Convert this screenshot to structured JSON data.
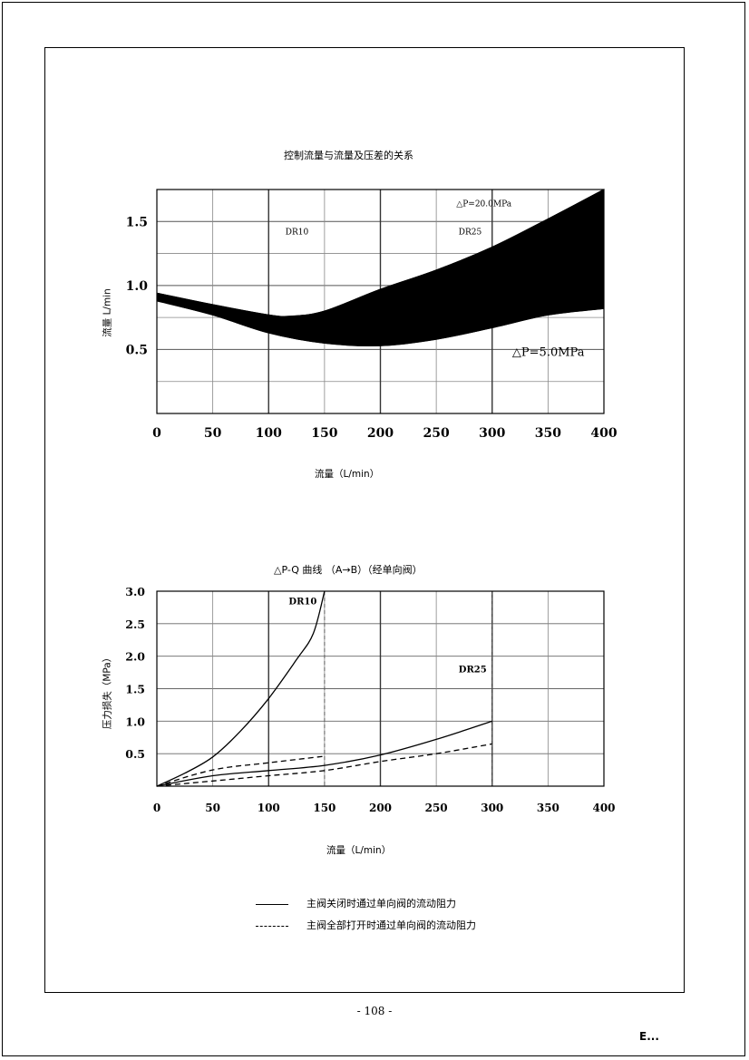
{
  "page": {
    "page_number": "- 108 -",
    "corner_mark": "E..."
  },
  "chart1": {
    "title": "控制流量与流量及压差的关系",
    "xlabel": "流量（L/min）",
    "ylabel": "流量 L/min"
  },
  "chart2": {
    "title": "△P-Q 曲线 （A→B）（经单向阀）",
    "xlabel": "流量（L/min）",
    "ylabel": "压力损失（MPa）",
    "legend": [
      {
        "label": "主阀关闭时通过单向阀的流动阻力",
        "style": "solid"
      },
      {
        "label": "主阀全部打开时通过单向阀的流动阻力",
        "style": "dashed"
      }
    ]
  },
  "chart_data": [
    {
      "type": "area",
      "title": "控制流量与流量及压差的关系",
      "xlabel": "流量（L/min）",
      "ylabel": "流量 L/min",
      "xlim": [
        0,
        400
      ],
      "ylim": [
        0,
        1.75
      ],
      "x_ticks": [
        {
          "value": 0,
          "label": "0"
        },
        {
          "value": 50,
          "label": "50"
        },
        {
          "value": 100,
          "label": "100"
        },
        {
          "value": 150,
          "label": "150"
        },
        {
          "value": 200,
          "label": "200"
        },
        {
          "value": 250,
          "label": "250"
        },
        {
          "value": 300,
          "label": "300"
        },
        {
          "value": 350,
          "label": "350"
        },
        {
          "value": 400,
          "label": "400"
        }
      ],
      "y_ticks": [
        {
          "value": 0.5,
          "label": "0.5"
        },
        {
          "value": 1.0,
          "label": "1.0"
        },
        {
          "value": 1.5,
          "label": "1.5"
        }
      ],
      "grid": true,
      "annotations": [
        {
          "text": "DR10",
          "x": 115,
          "y": 1.4
        },
        {
          "text": "DR25",
          "x": 270,
          "y": 1.4
        },
        {
          "text": "△P=20.0MPa",
          "x": 268,
          "y": 1.62
        },
        {
          "text": "△P=5.0MPa",
          "x": 318,
          "y": 0.45
        }
      ],
      "series": [
        {
          "name": "△P=20.0MPa",
          "x": [
            0,
            50,
            100,
            120,
            150,
            200,
            250,
            300,
            350,
            400
          ],
          "values": [
            0.94,
            0.85,
            0.77,
            0.76,
            0.8,
            0.97,
            1.12,
            1.3,
            1.52,
            1.75
          ]
        },
        {
          "name": "△P=5.0MPa",
          "x": [
            0,
            50,
            100,
            150,
            200,
            250,
            300,
            350,
            400
          ],
          "values": [
            0.88,
            0.77,
            0.63,
            0.55,
            0.53,
            0.58,
            0.67,
            0.77,
            0.82
          ]
        }
      ]
    },
    {
      "type": "line",
      "title": "△P-Q 曲线 （A→B）（经单向阀）",
      "xlabel": "流量（L/min）",
      "ylabel": "压力损失（MPa）",
      "xlim": [
        0,
        400
      ],
      "ylim": [
        0,
        3.0
      ],
      "x_ticks": [
        {
          "value": 0,
          "label": "0"
        },
        {
          "value": 50,
          "label": "50"
        },
        {
          "value": 100,
          "label": "100"
        },
        {
          "value": 150,
          "label": "150"
        },
        {
          "value": 200,
          "label": "200"
        },
        {
          "value": 250,
          "label": "250"
        },
        {
          "value": 300,
          "label": "300"
        },
        {
          "value": 350,
          "label": "350"
        },
        {
          "value": 400,
          "label": "400"
        }
      ],
      "y_ticks": [
        {
          "value": 0.5,
          "label": "0.5"
        },
        {
          "value": 1.0,
          "label": "1.0"
        },
        {
          "value": 1.5,
          "label": "1.5"
        },
        {
          "value": 2.0,
          "label": "2.0"
        },
        {
          "value": 2.5,
          "label": "2.5"
        },
        {
          "value": 3.0,
          "label": "3.0"
        }
      ],
      "grid": true,
      "vlines": [
        150,
        300
      ],
      "annotations": [
        {
          "text": "DR10",
          "x": 118,
          "y": 2.8
        },
        {
          "text": "DR25",
          "x": 270,
          "y": 1.75
        }
      ],
      "series": [
        {
          "style": "solid",
          "x": [
            0,
            25,
            50,
            75,
            100,
            125,
            140,
            150
          ],
          "values": [
            0,
            0.2,
            0.45,
            0.85,
            1.35,
            1.95,
            2.35,
            3.0
          ]
        },
        {
          "style": "solid",
          "x": [
            0,
            50,
            100,
            150,
            200,
            250,
            300
          ],
          "values": [
            0,
            0.16,
            0.24,
            0.32,
            0.48,
            0.72,
            1.0
          ]
        },
        {
          "style": "dashed",
          "x": [
            0,
            50,
            100,
            150
          ],
          "values": [
            0,
            0.25,
            0.36,
            0.46
          ]
        },
        {
          "style": "dashed",
          "x": [
            0,
            50,
            100,
            150,
            200,
            250,
            300
          ],
          "values": [
            0,
            0.08,
            0.16,
            0.24,
            0.38,
            0.5,
            0.65
          ]
        }
      ]
    }
  ]
}
